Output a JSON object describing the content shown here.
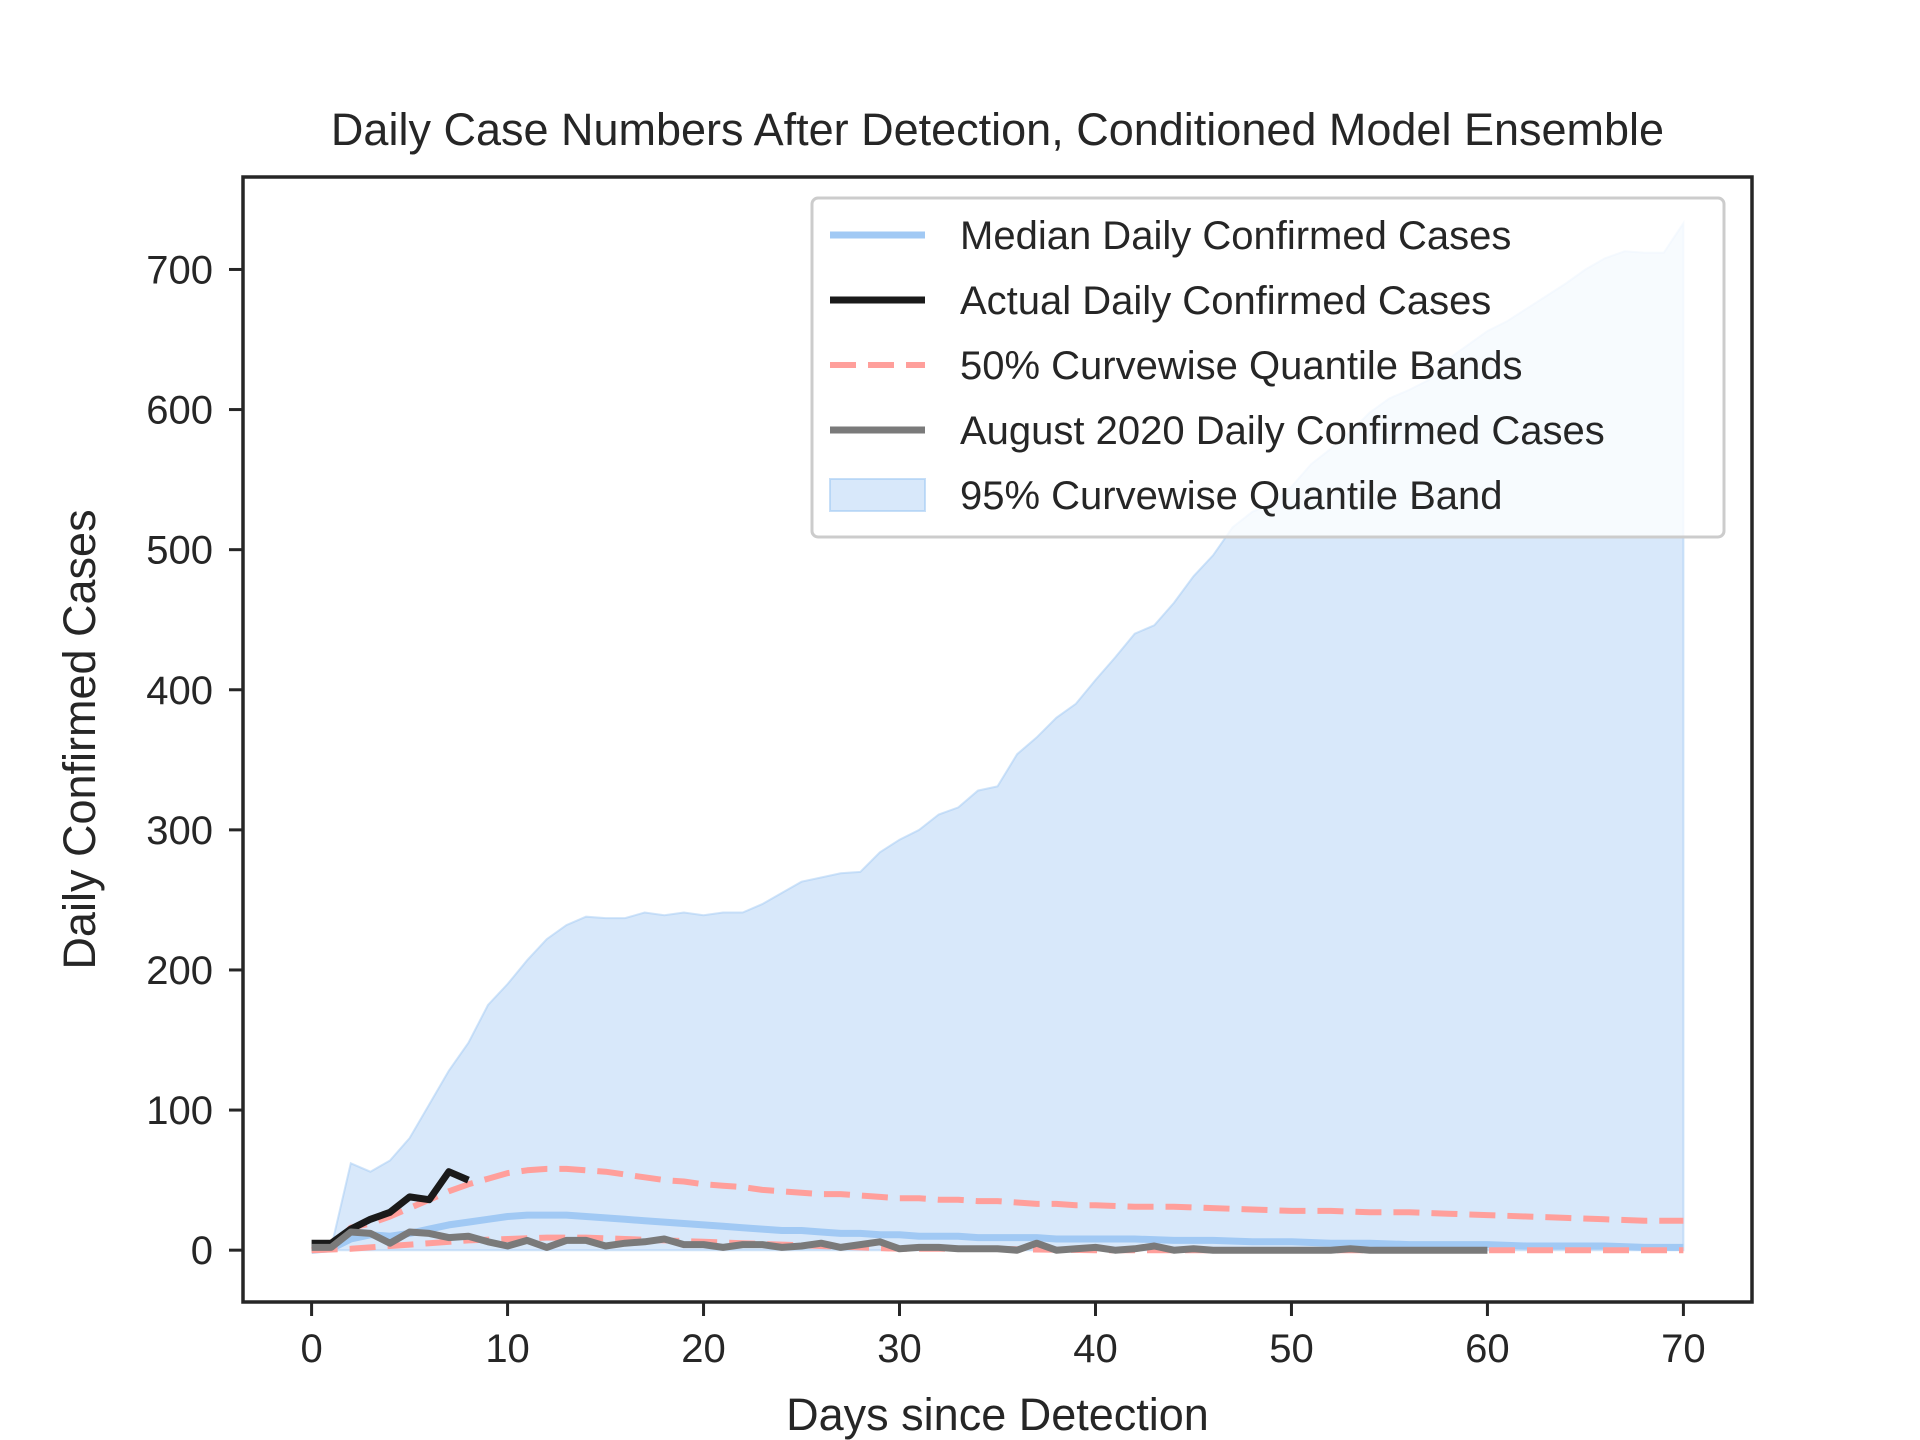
{
  "chart_data": {
    "type": "line",
    "title": "Daily Case Numbers After Detection, Conditioned Model Ensemble",
    "xlabel": "Days since Detection",
    "ylabel": "Daily Confirmed Cases",
    "xlim": [
      -3.5,
      73.5
    ],
    "ylim": [
      -37,
      766
    ],
    "xticks": [
      0,
      10,
      20,
      30,
      40,
      50,
      60,
      70
    ],
    "yticks": [
      0,
      100,
      200,
      300,
      400,
      500,
      600,
      700
    ],
    "grid": false,
    "legend_position": "upper right",
    "legend": [
      {
        "key": "median",
        "label": "Median Daily Confirmed Cases",
        "style": "line",
        "color": "#a1c9f4"
      },
      {
        "key": "actual",
        "label": "Actual Daily Confirmed Cases",
        "style": "line",
        "color": "#1a1a1a"
      },
      {
        "key": "q50",
        "label": "50% Curvewise Quantile Bands",
        "style": "dashed",
        "color": "#ff9f9b"
      },
      {
        "key": "aug2020",
        "label": "August 2020 Daily Confirmed Cases",
        "style": "line",
        "color": "#7a7a7a"
      },
      {
        "key": "band95",
        "label": "95% Curvewise Quantile Band",
        "style": "area",
        "color": "#a1c9f4"
      }
    ],
    "band95": {
      "color": "#a1c9f4",
      "lower": [
        [
          0,
          0
        ],
        [
          70,
          0
        ]
      ],
      "upper": [
        [
          0,
          0
        ],
        [
          1,
          2
        ],
        [
          2,
          62
        ],
        [
          3,
          56
        ],
        [
          4,
          64
        ],
        [
          5,
          80
        ],
        [
          6,
          104
        ],
        [
          7,
          128
        ],
        [
          8,
          148
        ],
        [
          9,
          175
        ],
        [
          10,
          190
        ],
        [
          11,
          207
        ],
        [
          12,
          222
        ],
        [
          13,
          232
        ],
        [
          14,
          238
        ],
        [
          15,
          237
        ],
        [
          16,
          237
        ],
        [
          17,
          241
        ],
        [
          18,
          239
        ],
        [
          19,
          241
        ],
        [
          20,
          239
        ],
        [
          21,
          241
        ],
        [
          22,
          241
        ],
        [
          23,
          247
        ],
        [
          24,
          255
        ],
        [
          25,
          263
        ],
        [
          26,
          266
        ],
        [
          27,
          269
        ],
        [
          28,
          270
        ],
        [
          29,
          284
        ],
        [
          30,
          293
        ],
        [
          31,
          300
        ],
        [
          32,
          311
        ],
        [
          33,
          316
        ],
        [
          34,
          328
        ],
        [
          35,
          331
        ],
        [
          36,
          354
        ],
        [
          37,
          366
        ],
        [
          38,
          380
        ],
        [
          39,
          390
        ],
        [
          40,
          407
        ],
        [
          41,
          423
        ],
        [
          42,
          440
        ],
        [
          43,
          446
        ],
        [
          44,
          462
        ],
        [
          45,
          481
        ],
        [
          46,
          496
        ],
        [
          47,
          516
        ],
        [
          48,
          527
        ],
        [
          49,
          533
        ],
        [
          50,
          545
        ],
        [
          51,
          561
        ],
        [
          52,
          572
        ],
        [
          53,
          584
        ],
        [
          54,
          598
        ],
        [
          55,
          608
        ],
        [
          56,
          614
        ],
        [
          57,
          621
        ],
        [
          58,
          636
        ],
        [
          59,
          646
        ],
        [
          60,
          656
        ],
        [
          61,
          663
        ],
        [
          62,
          672
        ],
        [
          63,
          681
        ],
        [
          64,
          690
        ],
        [
          65,
          700
        ],
        [
          66,
          708
        ],
        [
          67,
          713
        ],
        [
          68,
          712
        ],
        [
          69,
          712
        ],
        [
          70,
          733
        ]
      ]
    },
    "series": [
      {
        "key": "median",
        "name": "Median Daily Confirmed Cases",
        "color": "#a1c9f4",
        "style": "solid",
        "points": [
          [
            0,
            0
          ],
          [
            1,
            1
          ],
          [
            2,
            8
          ],
          [
            3,
            11
          ],
          [
            4,
            10
          ],
          [
            5,
            12
          ],
          [
            6,
            15
          ],
          [
            7,
            18
          ],
          [
            8,
            20
          ],
          [
            9,
            22
          ],
          [
            10,
            24
          ],
          [
            11,
            25
          ],
          [
            12,
            25
          ],
          [
            13,
            25
          ],
          [
            14,
            24
          ],
          [
            15,
            23
          ],
          [
            16,
            22
          ],
          [
            17,
            21
          ],
          [
            18,
            20
          ],
          [
            19,
            19
          ],
          [
            20,
            18
          ],
          [
            21,
            17
          ],
          [
            22,
            16
          ],
          [
            23,
            15
          ],
          [
            24,
            14
          ],
          [
            25,
            14
          ],
          [
            26,
            13
          ],
          [
            27,
            12
          ],
          [
            28,
            12
          ],
          [
            29,
            11
          ],
          [
            30,
            11
          ],
          [
            31,
            10
          ],
          [
            32,
            10
          ],
          [
            33,
            10
          ],
          [
            34,
            9
          ],
          [
            35,
            9
          ],
          [
            36,
            9
          ],
          [
            37,
            9
          ],
          [
            38,
            8
          ],
          [
            39,
            8
          ],
          [
            40,
            8
          ],
          [
            42,
            8
          ],
          [
            44,
            7
          ],
          [
            46,
            7
          ],
          [
            48,
            6
          ],
          [
            50,
            6
          ],
          [
            52,
            5
          ],
          [
            54,
            5
          ],
          [
            56,
            4
          ],
          [
            58,
            4
          ],
          [
            60,
            4
          ],
          [
            62,
            3
          ],
          [
            64,
            3
          ],
          [
            66,
            3
          ],
          [
            68,
            2
          ],
          [
            70,
            2
          ]
        ]
      },
      {
        "key": "q50_upper",
        "name": "50% Curvewise Quantile Bands",
        "color": "#ff9f9b",
        "style": "dashed",
        "points": [
          [
            0,
            0
          ],
          [
            1,
            2
          ],
          [
            2,
            16
          ],
          [
            3,
            19
          ],
          [
            4,
            24
          ],
          [
            5,
            30
          ],
          [
            6,
            36
          ],
          [
            7,
            42
          ],
          [
            8,
            47
          ],
          [
            9,
            51
          ],
          [
            10,
            55
          ],
          [
            11,
            57
          ],
          [
            12,
            58
          ],
          [
            13,
            58
          ],
          [
            14,
            57
          ],
          [
            15,
            56
          ],
          [
            16,
            54
          ],
          [
            17,
            52
          ],
          [
            18,
            50
          ],
          [
            19,
            49
          ],
          [
            20,
            47
          ],
          [
            21,
            46
          ],
          [
            22,
            45
          ],
          [
            23,
            43
          ],
          [
            24,
            42
          ],
          [
            25,
            41
          ],
          [
            26,
            40
          ],
          [
            27,
            40
          ],
          [
            28,
            39
          ],
          [
            29,
            38
          ],
          [
            30,
            37
          ],
          [
            31,
            37
          ],
          [
            32,
            36
          ],
          [
            33,
            36
          ],
          [
            34,
            35
          ],
          [
            35,
            35
          ],
          [
            36,
            34
          ],
          [
            37,
            33
          ],
          [
            38,
            33
          ],
          [
            39,
            32
          ],
          [
            40,
            32
          ],
          [
            42,
            31
          ],
          [
            44,
            31
          ],
          [
            46,
            30
          ],
          [
            48,
            29
          ],
          [
            50,
            28
          ],
          [
            52,
            28
          ],
          [
            54,
            27
          ],
          [
            56,
            27
          ],
          [
            58,
            26
          ],
          [
            60,
            25
          ],
          [
            62,
            24
          ],
          [
            64,
            23
          ],
          [
            66,
            22
          ],
          [
            68,
            21
          ],
          [
            70,
            21
          ]
        ]
      },
      {
        "key": "q50_lower",
        "name": "50% Curvewise Quantile Bands",
        "color": "#ff9f9b",
        "style": "dashed",
        "points": [
          [
            0,
            0
          ],
          [
            2,
            1
          ],
          [
            4,
            3
          ],
          [
            6,
            5
          ],
          [
            8,
            7
          ],
          [
            10,
            8
          ],
          [
            12,
            9
          ],
          [
            14,
            9
          ],
          [
            16,
            8
          ],
          [
            18,
            7
          ],
          [
            20,
            6
          ],
          [
            22,
            5
          ],
          [
            24,
            4
          ],
          [
            26,
            3
          ],
          [
            28,
            2
          ],
          [
            30,
            1
          ],
          [
            34,
            1
          ],
          [
            40,
            0
          ],
          [
            50,
            0
          ],
          [
            60,
            0
          ],
          [
            70,
            0
          ]
        ]
      },
      {
        "key": "actual",
        "name": "Actual Daily Confirmed Cases",
        "color": "#1a1a1a",
        "style": "solid",
        "points": [
          [
            0,
            5
          ],
          [
            1,
            5
          ],
          [
            2,
            15
          ],
          [
            3,
            22
          ],
          [
            4,
            27
          ],
          [
            5,
            38
          ],
          [
            6,
            36
          ],
          [
            7,
            56
          ],
          [
            8,
            50
          ]
        ]
      },
      {
        "key": "aug2020",
        "name": "August 2020 Daily Confirmed Cases",
        "color": "#7a7a7a",
        "style": "solid",
        "points": [
          [
            0,
            2
          ],
          [
            1,
            2
          ],
          [
            2,
            13
          ],
          [
            3,
            12
          ],
          [
            4,
            5
          ],
          [
            5,
            13
          ],
          [
            6,
            12
          ],
          [
            7,
            9
          ],
          [
            8,
            10
          ],
          [
            9,
            6
          ],
          [
            10,
            3
          ],
          [
            11,
            7
          ],
          [
            12,
            2
          ],
          [
            13,
            7
          ],
          [
            14,
            7
          ],
          [
            15,
            3
          ],
          [
            16,
            5
          ],
          [
            17,
            6
          ],
          [
            18,
            8
          ],
          [
            19,
            4
          ],
          [
            20,
            4
          ],
          [
            21,
            2
          ],
          [
            22,
            4
          ],
          [
            23,
            4
          ],
          [
            24,
            2
          ],
          [
            25,
            3
          ],
          [
            26,
            5
          ],
          [
            27,
            2
          ],
          [
            28,
            4
          ],
          [
            29,
            6
          ],
          [
            30,
            1
          ],
          [
            31,
            2
          ],
          [
            32,
            2
          ],
          [
            33,
            1
          ],
          [
            34,
            1
          ],
          [
            35,
            1
          ],
          [
            36,
            0
          ],
          [
            37,
            5
          ],
          [
            38,
            0
          ],
          [
            39,
            1
          ],
          [
            40,
            2
          ],
          [
            41,
            0
          ],
          [
            42,
            1
          ],
          [
            43,
            3
          ],
          [
            44,
            0
          ],
          [
            45,
            1
          ],
          [
            46,
            0
          ],
          [
            47,
            0
          ],
          [
            48,
            0
          ],
          [
            49,
            0
          ],
          [
            50,
            0
          ],
          [
            51,
            0
          ],
          [
            52,
            0
          ],
          [
            53,
            1
          ],
          [
            54,
            0
          ],
          [
            55,
            0
          ],
          [
            56,
            0
          ],
          [
            57,
            0
          ],
          [
            58,
            0
          ],
          [
            59,
            0
          ],
          [
            60,
            0
          ]
        ]
      }
    ]
  }
}
